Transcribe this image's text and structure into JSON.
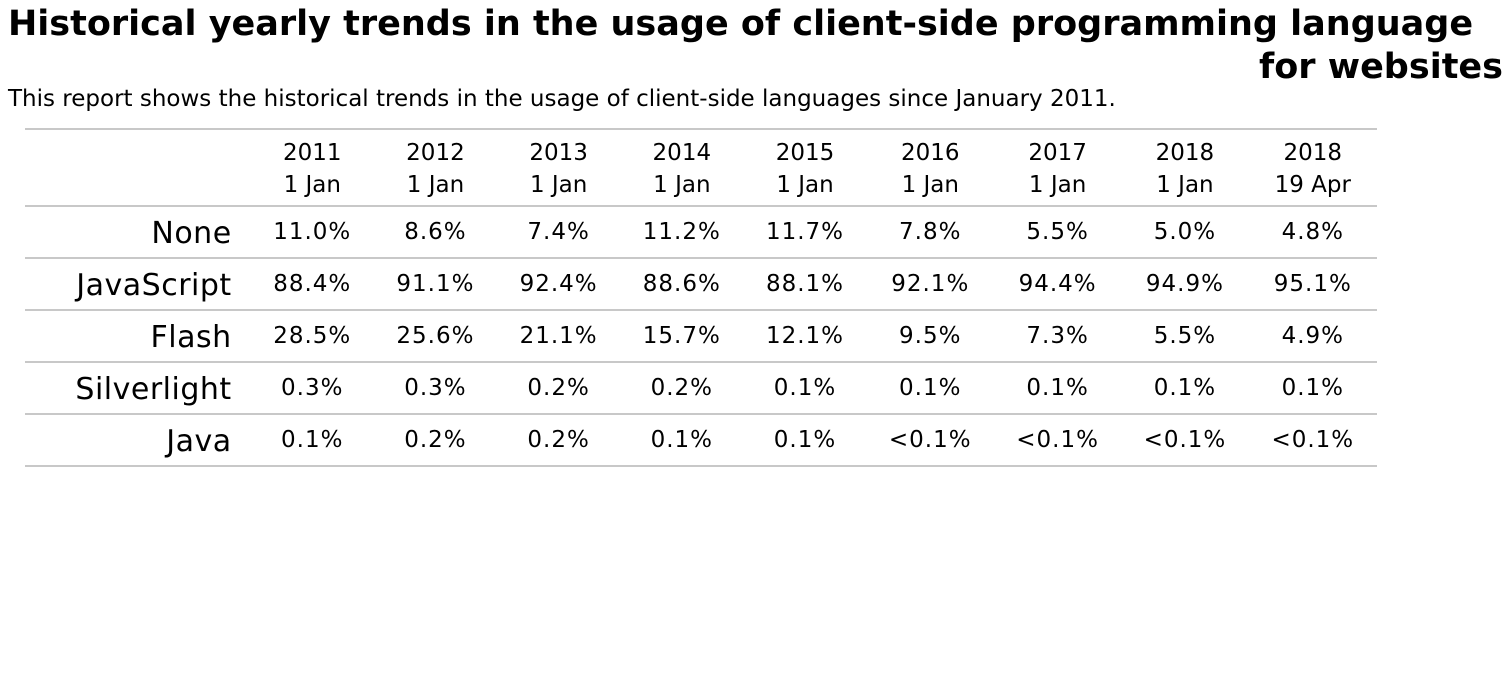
{
  "title_line1": "Historical yearly trends in the usage of client-side programming language",
  "title_line2": "for websites",
  "subtitle": "This report shows the historical trends in the usage of client-side languages since January 2011.",
  "chart_data": {
    "type": "table",
    "title": "Historical yearly trends in the usage of client-side programming language for websites",
    "columns": [
      {
        "year": "2011",
        "date": "1 Jan"
      },
      {
        "year": "2012",
        "date": "1 Jan"
      },
      {
        "year": "2013",
        "date": "1 Jan"
      },
      {
        "year": "2014",
        "date": "1 Jan"
      },
      {
        "year": "2015",
        "date": "1 Jan"
      },
      {
        "year": "2016",
        "date": "1 Jan"
      },
      {
        "year": "2017",
        "date": "1 Jan"
      },
      {
        "year": "2018",
        "date": "1 Jan"
      },
      {
        "year": "2018",
        "date": "19 Apr"
      }
    ],
    "rows": [
      {
        "label": "None",
        "values": [
          "11.0%",
          "8.6%",
          "7.4%",
          "11.2%",
          "11.7%",
          "7.8%",
          "5.5%",
          "5.0%",
          "4.8%"
        ]
      },
      {
        "label": "JavaScript",
        "values": [
          "88.4%",
          "91.1%",
          "92.4%",
          "88.6%",
          "88.1%",
          "92.1%",
          "94.4%",
          "94.9%",
          "95.1%"
        ]
      },
      {
        "label": "Flash",
        "values": [
          "28.5%",
          "25.6%",
          "21.1%",
          "15.7%",
          "12.1%",
          "9.5%",
          "7.3%",
          "5.5%",
          "4.9%"
        ]
      },
      {
        "label": "Silverlight",
        "values": [
          "0.3%",
          "0.3%",
          "0.2%",
          "0.2%",
          "0.1%",
          "0.1%",
          "0.1%",
          "0.1%",
          "0.1%"
        ]
      },
      {
        "label": "Java",
        "values": [
          "0.1%",
          "0.2%",
          "0.2%",
          "0.1%",
          "0.1%",
          "<0.1%",
          "<0.1%",
          "<0.1%",
          "<0.1%"
        ]
      }
    ]
  }
}
